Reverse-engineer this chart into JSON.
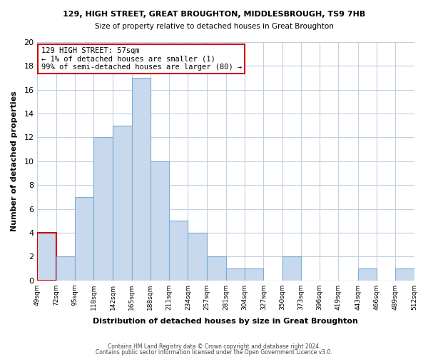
{
  "title": "129, HIGH STREET, GREAT BROUGHTON, MIDDLESBROUGH, TS9 7HB",
  "subtitle": "Size of property relative to detached houses in Great Broughton",
  "xlabel": "Distribution of detached houses by size in Great Broughton",
  "ylabel": "Number of detached properties",
  "bar_color": "#c8d9ee",
  "bar_edge_color": "#7aadd4",
  "annotation_box_color": "#cc0000",
  "annotation_text": "129 HIGH STREET: 57sqm\n← 1% of detached houses are smaller (1)\n99% of semi-detached houses are larger (80) →",
  "bin_edges": [
    49,
    72,
    95,
    118,
    142,
    165,
    188,
    211,
    234,
    257,
    281,
    304,
    327,
    350,
    373,
    396,
    419,
    443,
    466,
    489,
    512
  ],
  "counts": [
    4,
    2,
    7,
    12,
    13,
    17,
    10,
    5,
    4,
    2,
    1,
    1,
    0,
    2,
    0,
    0,
    0,
    1,
    0,
    1
  ],
  "ylim": [
    0,
    20
  ],
  "footer_line1": "Contains HM Land Registry data © Crown copyright and database right 2024.",
  "footer_line2": "Contains public sector information licensed under the Open Government Licence v3.0.",
  "highlight_bar_index": 0,
  "highlight_bar_color": "#cc0000",
  "background_color": "#ffffff",
  "grid_color": "#c0d0e0"
}
